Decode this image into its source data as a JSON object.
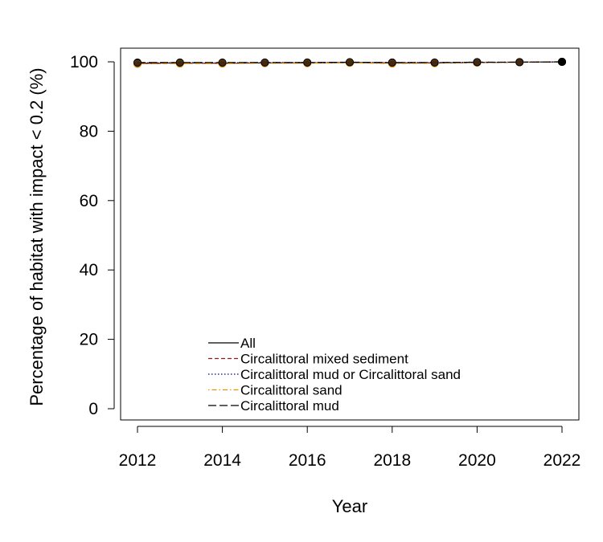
{
  "chart_data": {
    "type": "line",
    "title": "",
    "xlabel": "Year",
    "ylabel": "Percentage of habitat with impact < 0.2 (%)",
    "xlim": [
      2012,
      2022
    ],
    "ylim": [
      -3,
      103
    ],
    "xticks": [
      2012,
      2014,
      2016,
      2018,
      2020,
      2022
    ],
    "yticks": [
      0,
      20,
      40,
      60,
      80,
      100
    ],
    "grid": false,
    "legend_position": "bottom-center",
    "x": [
      2012,
      2013,
      2014,
      2015,
      2016,
      2017,
      2018,
      2019,
      2020,
      2021,
      2022
    ],
    "series": [
      {
        "name": "All",
        "color": "#000000",
        "dash": "solid",
        "values": [
          99.6,
          99.7,
          99.6,
          99.7,
          99.7,
          99.8,
          99.7,
          99.7,
          99.8,
          99.9,
          100
        ]
      },
      {
        "name": "Circalittoral mixed sediment",
        "color": "#8b1a1a",
        "dash": "dashed",
        "values": [
          99.5,
          99.6,
          99.6,
          99.7,
          99.7,
          99.8,
          99.7,
          99.7,
          99.8,
          99.9,
          100
        ]
      },
      {
        "name": "Circalittoral mud or Circalittoral sand",
        "color": "#00008b",
        "dash": "dotted",
        "values": [
          99.7,
          99.8,
          99.7,
          99.8,
          99.8,
          99.8,
          99.8,
          99.8,
          99.9,
          99.9,
          100
        ]
      },
      {
        "name": "Circalittoral sand",
        "color": "#e69500",
        "dash": "dotdash",
        "values": [
          99.4,
          99.5,
          99.5,
          99.6,
          99.6,
          99.7,
          99.5,
          99.6,
          99.8,
          99.9,
          100
        ]
      },
      {
        "name": "Circalittoral mud",
        "color": "#000000",
        "dash": "longdash",
        "values": [
          99.8,
          99.8,
          99.8,
          99.8,
          99.8,
          99.9,
          99.8,
          99.8,
          99.9,
          99.9,
          100
        ]
      }
    ]
  }
}
